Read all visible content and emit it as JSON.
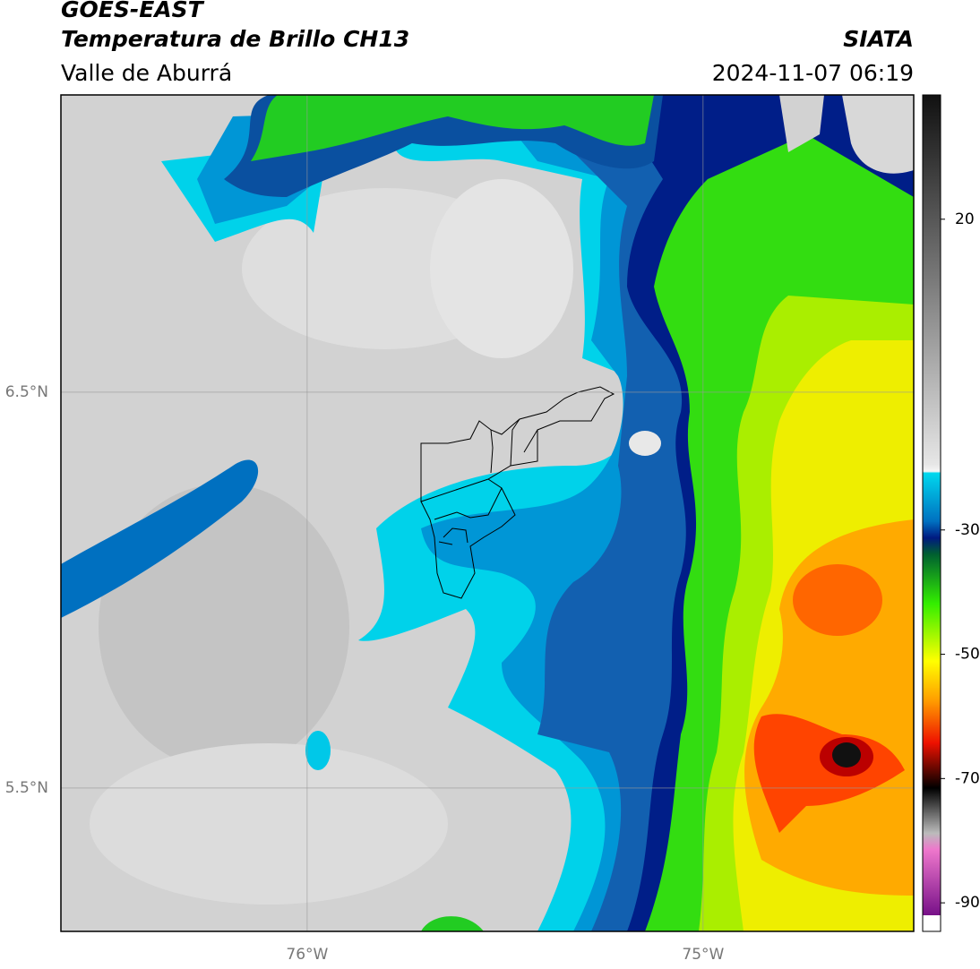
{
  "header": {
    "title": "GOES-EAST",
    "subtitle": "Temperatura de Brillo CH13",
    "region": "Valle de Aburrá",
    "source": "SIATA",
    "timestamp": "2024-11-07 06:19"
  },
  "map": {
    "xlim": [
      -76.622,
      -74.468
    ],
    "ylim": [
      5.138,
      7.251
    ],
    "xticks": [
      {
        "value": -76,
        "label": "76°W"
      },
      {
        "value": -75,
        "label": "75°W"
      }
    ],
    "yticks": [
      {
        "value": 6.5,
        "label": "6.5°N"
      },
      {
        "value": 5.5,
        "label": "5.5°N"
      }
    ],
    "grid": true
  },
  "colorbar": {
    "clim": [
      -92,
      40
    ],
    "ticks": [
      20,
      -30,
      -50,
      -70,
      -90
    ]
  }
}
